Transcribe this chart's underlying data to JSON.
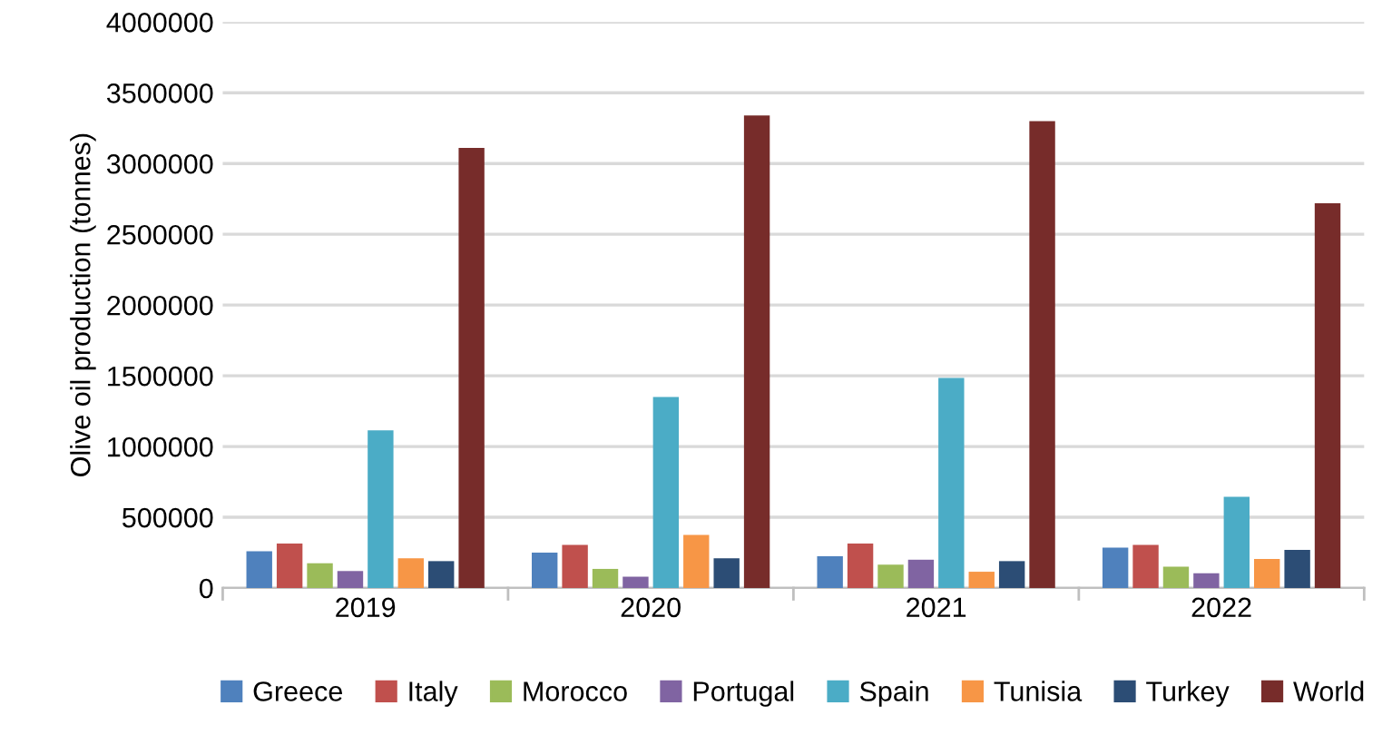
{
  "chart_data": {
    "type": "bar",
    "ylabel": "Olive oil production (tonnes)",
    "categories": [
      "2019",
      "2020",
      "2021",
      "2022"
    ],
    "ylim": [
      0,
      4000000
    ],
    "yticks": [
      0,
      500000,
      1000000,
      1500000,
      2000000,
      2500000,
      3000000,
      3500000,
      4000000
    ],
    "grid": "y",
    "legend": "bottom",
    "series": [
      {
        "name": "Greece",
        "color": "#4f81bd",
        "values": [
          260000,
          250000,
          225000,
          285000
        ]
      },
      {
        "name": "Italy",
        "color": "#c0504d",
        "values": [
          315000,
          305000,
          315000,
          305000
        ]
      },
      {
        "name": "Morocco",
        "color": "#9bbb59",
        "values": [
          175000,
          135000,
          165000,
          150000
        ]
      },
      {
        "name": "Portugal",
        "color": "#8064a2",
        "values": [
          120000,
          80000,
          200000,
          105000
        ]
      },
      {
        "name": "Spain",
        "color": "#4bacc6",
        "values": [
          1115000,
          1350000,
          1485000,
          645000
        ]
      },
      {
        "name": "Tunisia",
        "color": "#f79646",
        "values": [
          210000,
          375000,
          115000,
          205000
        ]
      },
      {
        "name": "Turkey",
        "color": "#2c4d75",
        "values": [
          190000,
          210000,
          190000,
          270000
        ]
      },
      {
        "name": "World",
        "color": "#772c2a",
        "values": [
          3110000,
          3340000,
          3300000,
          2720000
        ]
      }
    ]
  }
}
